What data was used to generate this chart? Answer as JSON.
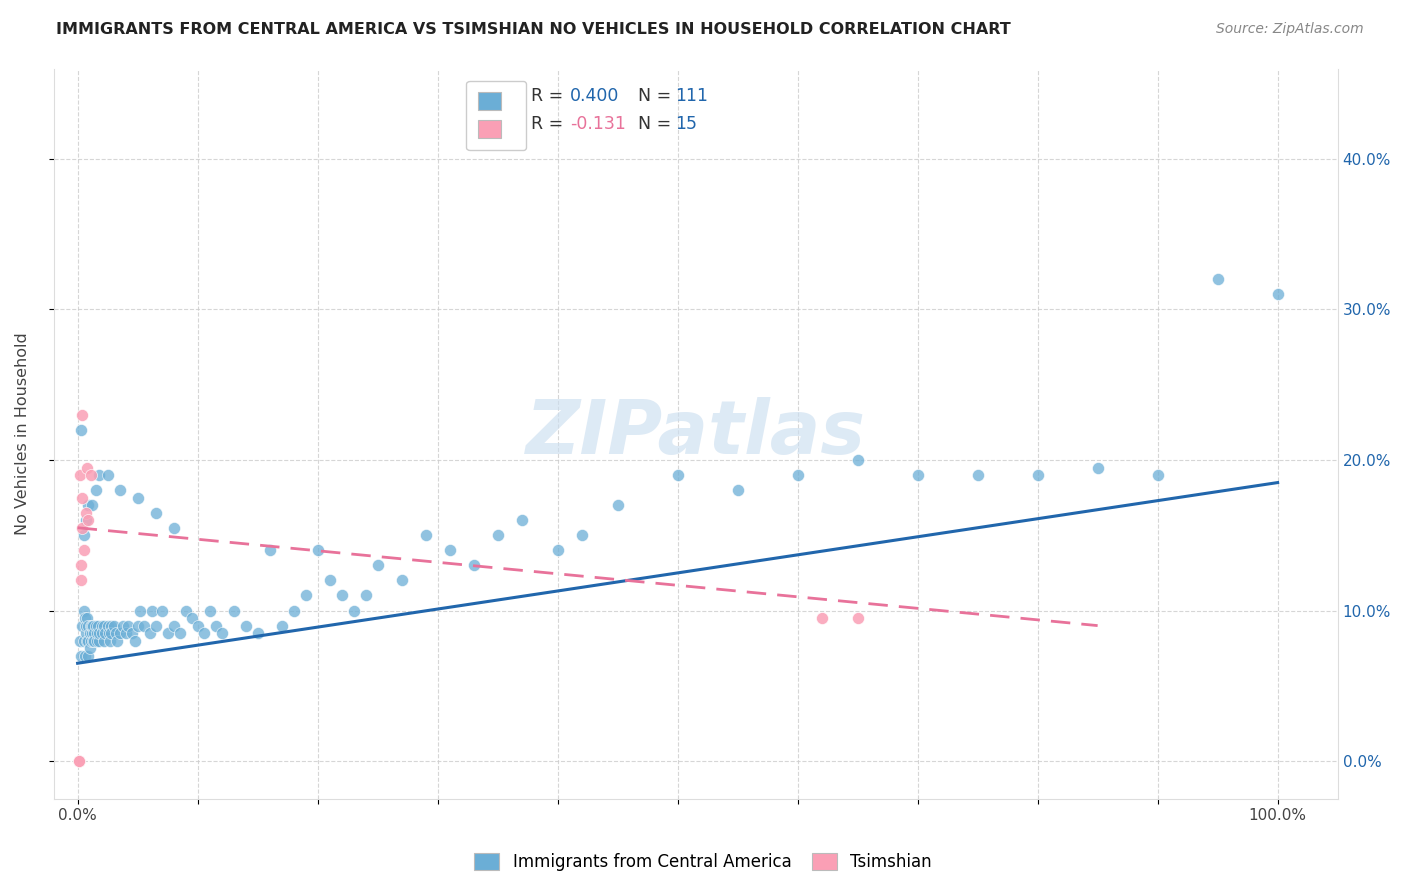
{
  "title": "IMMIGRANTS FROM CENTRAL AMERICA VS TSIMSHIAN NO VEHICLES IN HOUSEHOLD CORRELATION CHART",
  "source": "Source: ZipAtlas.com",
  "ylabel": "No Vehicles in Household",
  "blue_color": "#6baed6",
  "pink_color": "#fa9fb5",
  "blue_line_color": "#2166ac",
  "pink_line_color": "#e8729a",
  "watermark": "ZIPatlas",
  "legend_R_blue": "0.400",
  "legend_N_blue": "111",
  "legend_R_pink": "-0.131",
  "legend_N_pink": "15",
  "blue_scatter_x": [
    0.002,
    0.003,
    0.004,
    0.005,
    0.005,
    0.006,
    0.006,
    0.007,
    0.007,
    0.008,
    0.008,
    0.009,
    0.009,
    0.009,
    0.01,
    0.01,
    0.011,
    0.011,
    0.012,
    0.012,
    0.013,
    0.013,
    0.014,
    0.014,
    0.015,
    0.016,
    0.016,
    0.017,
    0.018,
    0.018,
    0.02,
    0.02,
    0.022,
    0.022,
    0.023,
    0.025,
    0.026,
    0.027,
    0.028,
    0.028,
    0.03,
    0.032,
    0.033,
    0.035,
    0.038,
    0.04,
    0.042,
    0.045,
    0.048,
    0.05,
    0.052,
    0.055,
    0.06,
    0.062,
    0.065,
    0.07,
    0.075,
    0.08,
    0.085,
    0.09,
    0.095,
    0.1,
    0.105,
    0.11,
    0.115,
    0.12,
    0.13,
    0.14,
    0.15,
    0.16,
    0.17,
    0.18,
    0.19,
    0.2,
    0.21,
    0.22,
    0.23,
    0.24,
    0.25,
    0.27,
    0.29,
    0.31,
    0.33,
    0.35,
    0.37,
    0.4,
    0.42,
    0.45,
    0.5,
    0.55,
    0.6,
    0.65,
    0.7,
    0.75,
    0.8,
    0.85,
    0.9,
    0.95,
    1.0,
    0.003,
    0.005,
    0.007,
    0.009,
    0.012,
    0.015,
    0.018,
    0.025,
    0.035,
    0.05,
    0.065,
    0.08
  ],
  "blue_scatter_y": [
    0.08,
    0.07,
    0.09,
    0.08,
    0.1,
    0.07,
    0.095,
    0.085,
    0.09,
    0.08,
    0.095,
    0.07,
    0.08,
    0.09,
    0.075,
    0.085,
    0.09,
    0.08,
    0.085,
    0.09,
    0.08,
    0.09,
    0.085,
    0.08,
    0.09,
    0.08,
    0.085,
    0.09,
    0.08,
    0.085,
    0.09,
    0.085,
    0.08,
    0.09,
    0.085,
    0.09,
    0.085,
    0.08,
    0.09,
    0.085,
    0.09,
    0.085,
    0.08,
    0.085,
    0.09,
    0.085,
    0.09,
    0.085,
    0.08,
    0.09,
    0.1,
    0.09,
    0.085,
    0.1,
    0.09,
    0.1,
    0.085,
    0.09,
    0.085,
    0.1,
    0.095,
    0.09,
    0.085,
    0.1,
    0.09,
    0.085,
    0.1,
    0.09,
    0.085,
    0.14,
    0.09,
    0.1,
    0.11,
    0.14,
    0.12,
    0.11,
    0.1,
    0.11,
    0.13,
    0.12,
    0.15,
    0.14,
    0.13,
    0.15,
    0.16,
    0.14,
    0.15,
    0.17,
    0.19,
    0.18,
    0.19,
    0.2,
    0.19,
    0.19,
    0.19,
    0.195,
    0.19,
    0.32,
    0.31,
    0.22,
    0.15,
    0.16,
    0.17,
    0.17,
    0.18,
    0.19,
    0.19,
    0.18,
    0.175,
    0.165,
    0.155
  ],
  "pink_scatter_x": [
    0.001,
    0.001,
    0.002,
    0.003,
    0.003,
    0.004,
    0.004,
    0.004,
    0.005,
    0.007,
    0.008,
    0.009,
    0.011,
    0.62,
    0.65
  ],
  "pink_scatter_y": [
    0.0,
    0.0,
    0.19,
    0.13,
    0.12,
    0.175,
    0.155,
    0.23,
    0.14,
    0.165,
    0.195,
    0.16,
    0.19,
    0.095,
    0.095
  ],
  "blue_trendline_x": [
    0.0,
    1.0
  ],
  "blue_trendline_y": [
    0.065,
    0.185
  ],
  "pink_trendline_x": [
    0.0,
    0.85
  ],
  "pink_trendline_y": [
    0.155,
    0.09
  ],
  "ytick_positions": [
    0.0,
    0.1,
    0.2,
    0.3,
    0.4
  ],
  "ytick_labels": [
    "0.0%",
    "10.0%",
    "20.0%",
    "30.0%",
    "40.0%"
  ],
  "xtick_positions": [
    0.0,
    0.1,
    0.2,
    0.3,
    0.4,
    0.5,
    0.6,
    0.7,
    0.8,
    0.9,
    1.0
  ],
  "xtick_labels": [
    "0.0%",
    "",
    "",
    "",
    "",
    "",
    "",
    "",
    "",
    "",
    "100.0%"
  ]
}
